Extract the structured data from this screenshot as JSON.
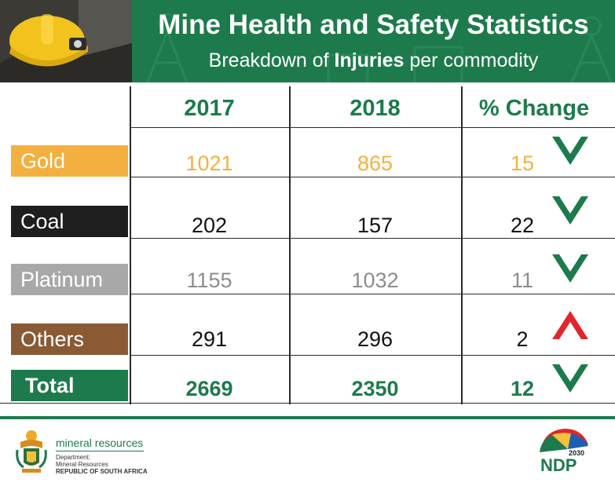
{
  "header": {
    "title": "Mine Health and Safety Statistics",
    "subtitle_pre": "Breakdown of ",
    "subtitle_bold": "Injuries",
    "subtitle_post": " per commodity"
  },
  "colors": {
    "green": "#1d7a4c",
    "gold": "#f4b03e",
    "coal": "#1e1e1e",
    "platinum": "#a8a8a8",
    "others": "#8a5a35",
    "down_arrow": "#1d7a4c",
    "up_arrow": "#e0262b"
  },
  "chart_data": {
    "type": "table",
    "columns": [
      "2017",
      "2018",
      "% Change"
    ],
    "rows": [
      {
        "label": "Gold",
        "y2017": "1021",
        "y2018": "865",
        "change": "15",
        "direction": "down"
      },
      {
        "label": "Coal",
        "y2017": "202",
        "y2018": "157",
        "change": "22",
        "direction": "down"
      },
      {
        "label": "Platinum",
        "y2017": "1155",
        "y2018": "1032",
        "change": "11",
        "direction": "down"
      },
      {
        "label": "Others",
        "y2017": "291",
        "y2018": "296",
        "change": "2",
        "direction": "up"
      },
      {
        "label": "Total",
        "y2017": "2669",
        "y2018": "2350",
        "change": "12",
        "direction": "down"
      }
    ]
  },
  "footer": {
    "dept_name": "mineral resources",
    "dept_line1": "Department:",
    "dept_line2": "Mineral Resources",
    "dept_line3": "REPUBLIC OF SOUTH AFRICA",
    "ndp_year": "2030",
    "ndp_text": "NDP"
  }
}
